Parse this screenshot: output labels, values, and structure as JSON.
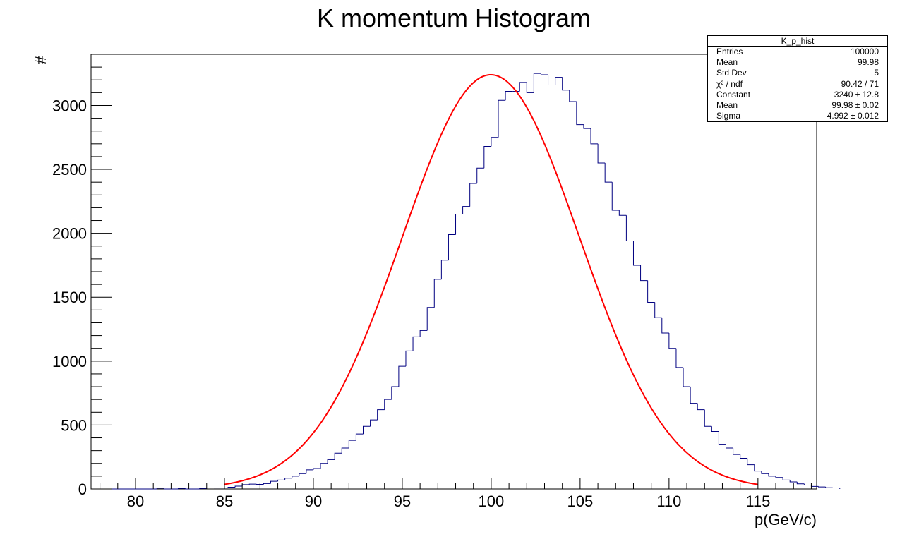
{
  "chart_data": {
    "type": "bar",
    "title": "K momentum Histogram",
    "xlabel": "p(GeV/c)",
    "ylabel": "#",
    "xlim": [
      77.5,
      118.3
    ],
    "ylim": [
      0,
      3400
    ],
    "x_ticks": [
      80,
      85,
      90,
      95,
      100,
      105,
      110,
      115
    ],
    "x_tick_labels": [
      "80",
      "85",
      "90",
      "95",
      "100",
      "105",
      "110",
      "115"
    ],
    "y_ticks": [
      0,
      500,
      1000,
      1500,
      2000,
      2500,
      3000
    ],
    "y_tick_labels": [
      "0",
      "500",
      "1000",
      "1500",
      "2000",
      "2500",
      "3000"
    ],
    "bin_edges_start": 78,
    "bin_width": 0.4,
    "values": [
      0,
      0,
      0,
      0,
      0,
      0,
      0,
      0,
      6,
      0,
      0,
      4,
      0,
      0,
      4,
      8,
      8,
      8,
      14,
      22,
      34,
      38,
      36,
      42,
      60,
      70,
      84,
      100,
      120,
      150,
      160,
      200,
      230,
      280,
      320,
      380,
      430,
      490,
      540,
      620,
      700,
      800,
      960,
      1080,
      1190,
      1240,
      1420,
      1640,
      1790,
      1990,
      2150,
      2210,
      2390,
      2510,
      2680,
      2750,
      3040,
      3110,
      3110,
      3180,
      3100,
      3250,
      3240,
      3160,
      3220,
      3120,
      3030,
      2850,
      2820,
      2700,
      2550,
      2400,
      2180,
      2140,
      1940,
      1750,
      1630,
      1460,
      1340,
      1220,
      1100,
      950,
      800,
      670,
      620,
      490,
      450,
      350,
      320,
      270,
      240,
      190,
      140,
      120,
      100,
      90,
      70,
      55,
      40,
      30,
      20,
      16,
      10,
      8
    ],
    "series": [
      {
        "name": "K_p_hist",
        "type": "histogram",
        "color": "#000080"
      },
      {
        "type": "gaussian-fit",
        "color": "#ff0000",
        "constant": 3240,
        "mean": 99.98,
        "sigma": 4.992,
        "x_range": [
          85,
          115
        ]
      }
    ],
    "grid": false,
    "legend": "top-right"
  },
  "stats": {
    "name": "K_p_hist",
    "rows": [
      {
        "label": "Entries",
        "value": "100000"
      },
      {
        "label": "Mean",
        "value": "99.98"
      },
      {
        "label": "Std Dev",
        "value": "5"
      },
      {
        "label": "χ² / ndf",
        "value": "90.42 / 71"
      },
      {
        "label": "Constant",
        "value": "3240 ± 12.8"
      },
      {
        "label": "Mean",
        "value": "99.98 ± 0.02"
      },
      {
        "label": "Sigma",
        "value": "4.992 ± 0.012"
      }
    ]
  }
}
